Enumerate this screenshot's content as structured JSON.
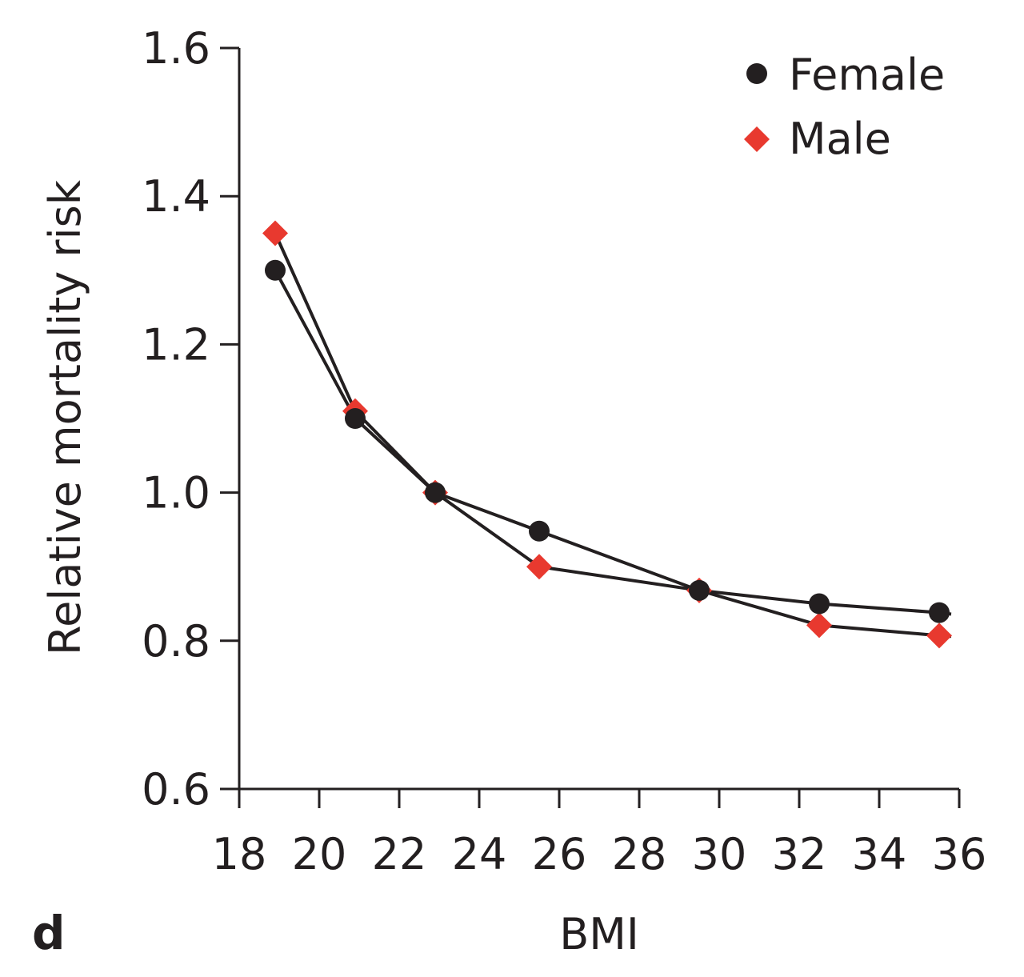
{
  "chart_data": {
    "type": "line",
    "title": "",
    "panel_label": "d",
    "xlabel": "BMI",
    "ylabel": "Relative mortality risk",
    "xlim": [
      18,
      36
    ],
    "ylim": [
      0.6,
      1.6
    ],
    "xticks": [
      18,
      20,
      22,
      24,
      26,
      28,
      30,
      32,
      34,
      36
    ],
    "yticks": [
      "0.6",
      "0.8",
      "1.0",
      "1.2",
      "1.4",
      "1.6"
    ],
    "grid": false,
    "legend_position": "top-right",
    "series": [
      {
        "name": "Female",
        "marker": "circle",
        "color": "#231f20",
        "x": [
          18.9,
          20.9,
          22.9,
          25.5,
          29.5,
          32.5,
          35.5
        ],
        "y": [
          1.3,
          1.1,
          1.0,
          0.948,
          0.868,
          0.85,
          0.838
        ],
        "line_end": {
          "x": 35.8,
          "y": 0.836
        }
      },
      {
        "name": "Male",
        "marker": "diamond",
        "color": "#e8392f",
        "x": [
          18.9,
          20.9,
          22.9,
          25.5,
          29.5,
          32.5,
          35.5
        ],
        "y": [
          1.35,
          1.11,
          1.0,
          0.9,
          0.868,
          0.821,
          0.807
        ],
        "line_end": {
          "x": 35.8,
          "y": 0.806
        }
      }
    ]
  }
}
